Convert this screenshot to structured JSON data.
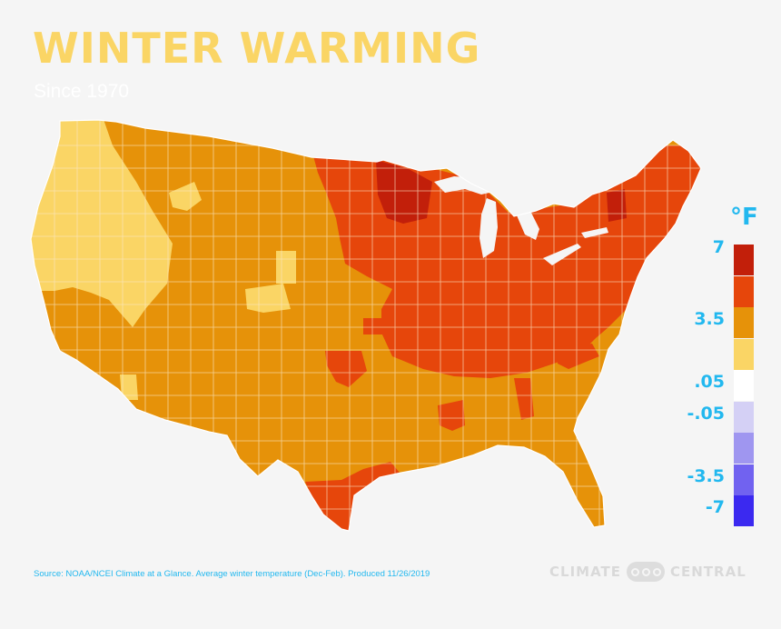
{
  "title": "WINTER WARMING",
  "subtitle": "Since 1970",
  "legend": {
    "unit": "°F",
    "bins": [
      {
        "color": "#c21f0a",
        "label": "7"
      },
      {
        "color": "#e6460b",
        "label": ""
      },
      {
        "color": "#e69209",
        "label": "3.5"
      },
      {
        "color": "#fad565",
        "label": ""
      },
      {
        "color": "#ffffff",
        "label": ".05"
      },
      {
        "color": "#d4d0f5",
        "label": "-.05"
      },
      {
        "color": "#9f96f0",
        "label": ""
      },
      {
        "color": "#7162f0",
        "label": "-3.5"
      },
      {
        "color": "#3b29f0",
        "label": "-7"
      }
    ]
  },
  "source": "Source: NOAA/NCEI Climate at a Glance. Average winter temperature (Dec-Feb). Produced 11/26/2019",
  "brand": {
    "left": "CLIMATE",
    "right": "CENTRAL"
  },
  "colors": {
    "highest": "#c21f0a",
    "high": "#e6460b",
    "medium": "#e69209",
    "low": "#fad565",
    "background": "#f5f5f5",
    "accent": "#22b8ef"
  }
}
